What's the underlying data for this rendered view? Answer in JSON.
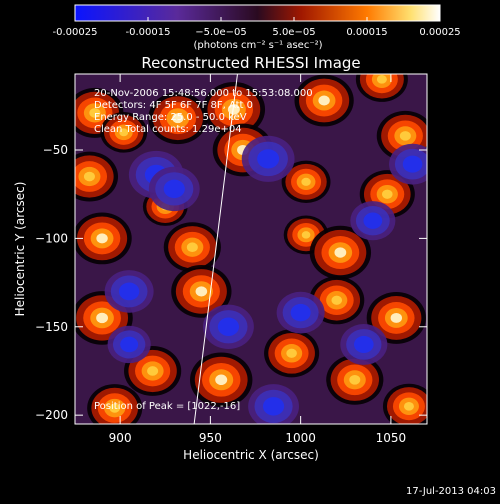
{
  "colorbar": {
    "tick_labels": [
      "-0.00025",
      "-0.00015",
      "−5.0e−05",
      "5.0e−05",
      "0.00015",
      "0.00025"
    ],
    "tick_values": [
      -0.00025,
      -0.00015,
      -5e-05,
      5e-05,
      0.00015,
      0.00025
    ],
    "range": [
      -0.00025,
      0.00025
    ],
    "units": "(photons cm⁻² s⁻¹ asec⁻²)",
    "colors": [
      "#1020ff",
      "#5a2a9a",
      "#b02800",
      "#ff6a00",
      "#ffffff"
    ]
  },
  "chart_data": {
    "type": "heatmap",
    "title": "Reconstructed RHESSI Image",
    "xlabel": "Heliocentric X (arcsec)",
    "ylabel": "Heliocentric Y (arcsec)",
    "xlim": [
      875,
      1070
    ],
    "ylim": [
      -205,
      -7
    ],
    "x_ticks": [
      900,
      950,
      1000,
      1050
    ],
    "y_ticks": [
      -50,
      -100,
      -150,
      -200
    ],
    "annotations": [
      "20-Nov-2006 15:48:56.000 to 15:53:08.000",
      "Detectors: 4F 5F 6F 7F 8F, Att 0",
      "Energy Range: 25.0 - 50.0 keV",
      "Clean     Total counts: 1.29e+04"
    ],
    "peak_label": "Position of Peak = [1022,-16]",
    "peak": [
      1022,
      -16
    ],
    "limb_line": [
      [
        941,
        -205
      ],
      [
        965,
        -7
      ]
    ],
    "blobs": [
      {
        "x": 886,
        "y": -29,
        "v": 0.0002
      },
      {
        "x": 902,
        "y": -40,
        "v": 0.0001
      },
      {
        "x": 932,
        "y": -32,
        "v": 0.00022
      },
      {
        "x": 963,
        "y": -27,
        "v": 0.00025
      },
      {
        "x": 1013,
        "y": -22,
        "v": 0.00022
      },
      {
        "x": 1045,
        "y": -10,
        "v": 0.00015
      },
      {
        "x": 1058,
        "y": -42,
        "v": 0.0002
      },
      {
        "x": 883,
        "y": -65,
        "v": 0.0002
      },
      {
        "x": 925,
        "y": -82,
        "v": 8e-05
      },
      {
        "x": 968,
        "y": -50,
        "v": 0.00023
      },
      {
        "x": 1003,
        "y": -68,
        "v": 0.00012
      },
      {
        "x": 1048,
        "y": -75,
        "v": 0.00018
      },
      {
        "x": 1003,
        "y": -98,
        "v": 8e-05
      },
      {
        "x": 890,
        "y": -100,
        "v": 0.00022
      },
      {
        "x": 940,
        "y": -105,
        "v": 0.0002
      },
      {
        "x": 1022,
        "y": -108,
        "v": 0.00024
      },
      {
        "x": 890,
        "y": -145,
        "v": 0.00024
      },
      {
        "x": 945,
        "y": -130,
        "v": 0.00023
      },
      {
        "x": 995,
        "y": -165,
        "v": 0.00018
      },
      {
        "x": 1053,
        "y": -145,
        "v": 0.00022
      },
      {
        "x": 1020,
        "y": -135,
        "v": 0.00018
      },
      {
        "x": 918,
        "y": -175,
        "v": 0.0002
      },
      {
        "x": 956,
        "y": -180,
        "v": 0.00025
      },
      {
        "x": 1030,
        "y": -180,
        "v": 0.0002
      },
      {
        "x": 897,
        "y": -196,
        "v": 0.00018
      },
      {
        "x": 1060,
        "y": -195,
        "v": 0.00015
      },
      {
        "x": 920,
        "y": -64,
        "v": -0.00022
      },
      {
        "x": 930,
        "y": -72,
        "v": -0.00018
      },
      {
        "x": 982,
        "y": -55,
        "v": -0.0002
      },
      {
        "x": 1062,
        "y": -58,
        "v": -0.00014
      },
      {
        "x": 960,
        "y": -150,
        "v": -0.00018
      },
      {
        "x": 905,
        "y": -130,
        "v": -0.00016
      },
      {
        "x": 1000,
        "y": -142,
        "v": -0.00015
      },
      {
        "x": 985,
        "y": -195,
        "v": -0.00018
      },
      {
        "x": 1035,
        "y": -160,
        "v": -0.00014
      },
      {
        "x": 1040,
        "y": -90,
        "v": -0.00012
      },
      {
        "x": 905,
        "y": -160,
        "v": -0.0001
      }
    ]
  },
  "footer": {
    "timestamp": "17-Jul-2013 04:03"
  }
}
